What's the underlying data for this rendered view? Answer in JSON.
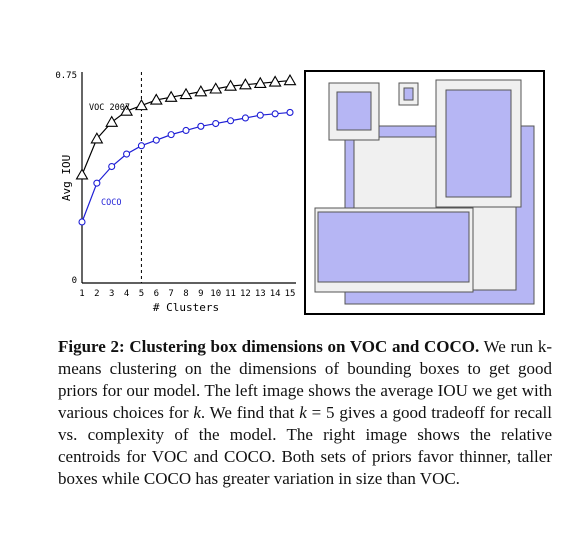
{
  "chart_data": {
    "type": "line",
    "ylabel": "Avg IOU",
    "xlabel": "# Clusters",
    "x": [
      1,
      2,
      3,
      4,
      5,
      6,
      7,
      8,
      9,
      10,
      11,
      12,
      13,
      14,
      15
    ],
    "y_tick_labels": [
      "0.75",
      "0"
    ],
    "ylim": [
      0,
      0.75
    ],
    "marker_line_x": 5,
    "series": [
      {
        "name": "VOC 2007",
        "marker": "triangle",
        "values": [
          0.39,
          0.52,
          0.58,
          0.62,
          0.64,
          0.66,
          0.67,
          0.68,
          0.69,
          0.7,
          0.71,
          0.715,
          0.72,
          0.725,
          0.73
        ]
      },
      {
        "name": "COCO",
        "marker": "circle",
        "values": [
          0.22,
          0.36,
          0.42,
          0.465,
          0.495,
          0.515,
          0.535,
          0.55,
          0.565,
          0.575,
          0.585,
          0.595,
          0.605,
          0.61,
          0.615
        ]
      }
    ]
  },
  "caption": {
    "label": "Figure 2:",
    "title": "Clustering box dimensions on VOC and COCO.",
    "body_1": " We run k-means clustering on the dimensions of bounding boxes to get good priors for our model. The left image shows the average IOU we get with various choices for ",
    "k1": "k",
    "body_2": ". We find that ",
    "k2": "k",
    "eq": " = 5",
    "body_3": " gives a good tradeoff for recall vs. complexity of the model. The right image shows the relative centroids for VOC and COCO. Both sets of priors favor thinner, taller boxes while COCO has greater variation in size than VOC."
  },
  "colors": {
    "coco": "#1f1fd6",
    "voc": "#000000",
    "fill": "#b6b6f4",
    "gray": "#f0f0f0"
  }
}
